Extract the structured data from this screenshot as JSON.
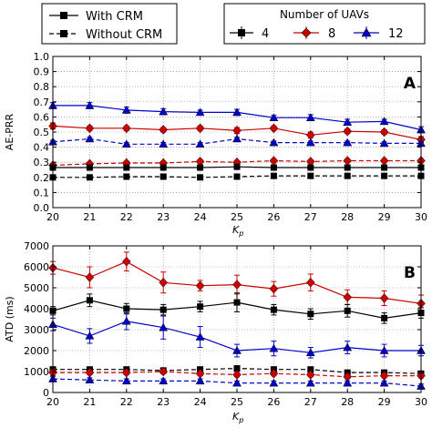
{
  "legend_style": {
    "entries": [
      {
        "label": "With CRM",
        "dash": "solid"
      },
      {
        "label": "Without CRM",
        "dash": "dashed"
      }
    ]
  },
  "legend_uav": {
    "title": "Number of UAVs",
    "entries": [
      {
        "label": "4",
        "color": "#000000",
        "marker": "square"
      },
      {
        "label": "8",
        "color": "#cc0000",
        "marker": "diamond"
      },
      {
        "label": "12",
        "color": "#0000cc",
        "marker": "triangle"
      }
    ]
  },
  "chart_data": [
    {
      "type": "line",
      "panel_label": "A",
      "ylabel": "AE-PRR",
      "xlabel": "K_p",
      "x": [
        20,
        21,
        22,
        23,
        24,
        25,
        26,
        27,
        28,
        29,
        30
      ],
      "xlim": [
        20,
        30
      ],
      "ylim": [
        0,
        1.0
      ],
      "yticks": [
        0,
        0.1,
        0.2,
        0.3,
        0.4,
        0.5,
        0.6,
        0.7,
        0.8,
        0.9,
        1.0
      ],
      "ytick_labels": [
        "0.0",
        "0.1",
        "0.2",
        "0.3",
        "0.4",
        "0.5",
        "0.6",
        "0.7",
        "0.8",
        "0.9",
        "1.0"
      ],
      "grid": true,
      "series": [
        {
          "uav": "12",
          "crm": "with",
          "color": "#0000cc",
          "marker": "triangle",
          "dash": "solid",
          "values": [
            0.675,
            0.675,
            0.645,
            0.635,
            0.63,
            0.63,
            0.595,
            0.595,
            0.565,
            0.57,
            0.515
          ],
          "err": [
            0.02,
            0.02,
            0.02,
            0.02,
            0.015,
            0.02,
            0.015,
            0.02,
            0.02,
            0.015,
            0.02
          ]
        },
        {
          "uav": "8",
          "crm": "with",
          "color": "#cc0000",
          "marker": "diamond",
          "dash": "solid",
          "values": [
            0.54,
            0.525,
            0.525,
            0.515,
            0.525,
            0.51,
            0.525,
            0.48,
            0.505,
            0.5,
            0.45
          ],
          "err": [
            0.02,
            0.015,
            0.015,
            0.015,
            0.015,
            0.02,
            0.015,
            0.02,
            0.015,
            0.015,
            0.02
          ]
        },
        {
          "uav": "12",
          "crm": "without",
          "color": "#0000cc",
          "marker": "triangle",
          "dash": "dashed",
          "values": [
            0.435,
            0.455,
            0.42,
            0.42,
            0.42,
            0.455,
            0.43,
            0.43,
            0.43,
            0.425,
            0.425
          ],
          "err": [
            0.01,
            0.01,
            0.01,
            0.01,
            0.01,
            0.01,
            0.01,
            0.01,
            0.01,
            0.01,
            0.01
          ]
        },
        {
          "uav": "8",
          "crm": "without",
          "color": "#cc0000",
          "marker": "diamond",
          "dash": "dashed",
          "values": [
            0.28,
            0.29,
            0.295,
            0.295,
            0.305,
            0.3,
            0.31,
            0.305,
            0.31,
            0.31,
            0.31
          ],
          "err": [
            0.01,
            0.01,
            0.01,
            0.01,
            0.01,
            0.01,
            0.01,
            0.01,
            0.01,
            0.01,
            0.01
          ]
        },
        {
          "uav": "4",
          "crm": "with",
          "color": "#000000",
          "marker": "square",
          "dash": "solid",
          "values": [
            0.265,
            0.265,
            0.265,
            0.265,
            0.265,
            0.27,
            0.265,
            0.265,
            0.265,
            0.265,
            0.265
          ],
          "err": [
            0.01,
            0.01,
            0.01,
            0.01,
            0.01,
            0.01,
            0.01,
            0.01,
            0.01,
            0.01,
            0.01
          ]
        },
        {
          "uav": "4",
          "crm": "without",
          "color": "#000000",
          "marker": "square",
          "dash": "dashed",
          "values": [
            0.2,
            0.2,
            0.205,
            0.205,
            0.2,
            0.205,
            0.21,
            0.21,
            0.21,
            0.21,
            0.21
          ],
          "err": [
            0.008,
            0.008,
            0.008,
            0.008,
            0.008,
            0.008,
            0.008,
            0.008,
            0.008,
            0.008,
            0.008
          ]
        }
      ]
    },
    {
      "type": "line",
      "panel_label": "B",
      "ylabel": "ATD (ms)",
      "xlabel": "K_p",
      "x": [
        20,
        21,
        22,
        23,
        24,
        25,
        26,
        27,
        28,
        29,
        30
      ],
      "xlim": [
        20,
        30
      ],
      "ylim": [
        0,
        7000
      ],
      "yticks": [
        0,
        1000,
        2000,
        3000,
        4000,
        5000,
        6000,
        7000
      ],
      "ytick_labels": [
        "0",
        "1000",
        "2000",
        "3000",
        "4000",
        "5000",
        "6000",
        "7000"
      ],
      "grid": true,
      "series": [
        {
          "uav": "8",
          "crm": "with",
          "color": "#cc0000",
          "marker": "diamond",
          "dash": "solid",
          "values": [
            5950,
            5500,
            6250,
            5250,
            5100,
            5150,
            4950,
            5250,
            4550,
            4500,
            4250
          ],
          "err": [
            300,
            500,
            450,
            500,
            250,
            450,
            350,
            400,
            350,
            350,
            400
          ]
        },
        {
          "uav": "4",
          "crm": "with",
          "color": "#000000",
          "marker": "square",
          "dash": "solid",
          "values": [
            3900,
            4400,
            4000,
            3950,
            4100,
            4300,
            3950,
            3750,
            3900,
            3550,
            3800
          ],
          "err": [
            200,
            300,
            250,
            250,
            250,
            450,
            250,
            250,
            300,
            250,
            250
          ]
        },
        {
          "uav": "12",
          "crm": "with",
          "color": "#0000cc",
          "marker": "triangle",
          "dash": "solid",
          "values": [
            3250,
            2700,
            3400,
            3100,
            2650,
            2000,
            2100,
            1900,
            2150,
            2000,
            2000
          ],
          "err": [
            300,
            350,
            400,
            550,
            500,
            300,
            350,
            250,
            300,
            300,
            250
          ]
        },
        {
          "uav": "4",
          "crm": "without",
          "color": "#000000",
          "marker": "square",
          "dash": "dashed",
          "values": [
            1100,
            1100,
            1100,
            1050,
            1100,
            1150,
            1100,
            1100,
            950,
            950,
            900
          ],
          "err": [
            100,
            100,
            100,
            100,
            100,
            100,
            100,
            100,
            100,
            100,
            100
          ]
        },
        {
          "uav": "8",
          "crm": "without",
          "color": "#cc0000",
          "marker": "diamond",
          "dash": "dashed",
          "values": [
            950,
            950,
            950,
            1000,
            900,
            850,
            900,
            850,
            750,
            800,
            800
          ],
          "err": [
            150,
            100,
            100,
            100,
            100,
            100,
            100,
            100,
            100,
            100,
            100
          ]
        },
        {
          "uav": "12",
          "crm": "without",
          "color": "#0000cc",
          "marker": "triangle",
          "dash": "dashed",
          "values": [
            650,
            600,
            550,
            550,
            550,
            450,
            450,
            450,
            450,
            450,
            300
          ],
          "err": [
            100,
            100,
            100,
            100,
            100,
            100,
            100,
            100,
            100,
            100,
            100
          ]
        }
      ]
    }
  ]
}
